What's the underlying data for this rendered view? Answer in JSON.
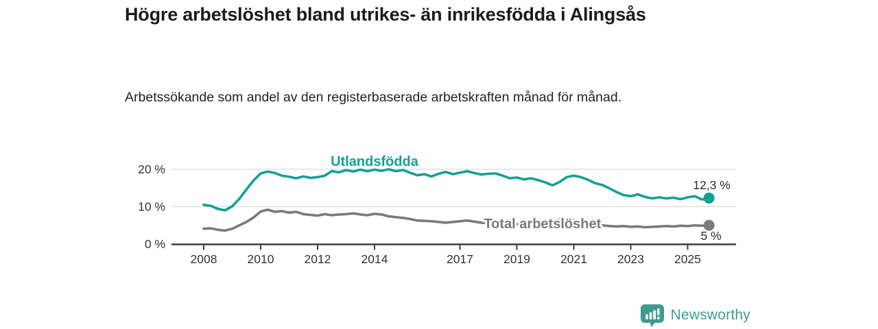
{
  "header": {
    "title": "Högre arbetslöshet bland utrikes- än inrikesfödda i Alingsås",
    "subtitle": "Arbetssökande som andel av den registerbaserade arbetskraften månad för månad."
  },
  "branding": {
    "name": "Newsworthy",
    "logo_icon": "bar-chart-speech-bubble-icon",
    "color": "#3f9b90"
  },
  "chart_data": {
    "type": "line",
    "title": "Högre arbetslöshet bland utrikes- än inrikesfödda i Alingsås",
    "subtitle": "Arbetssökande som andel av den registerbaserade arbetskraften månad för månad.",
    "xlabel": "",
    "ylabel": "",
    "grid": "horizontal",
    "legend_position": "inline-labels",
    "xlim": [
      2006.9,
      2026.7
    ],
    "ylim": [
      0,
      22
    ],
    "x_ticks": [
      2008,
      2010,
      2012,
      2014,
      2017,
      2019,
      2021,
      2023,
      2025
    ],
    "y_ticks": [
      {
        "value": 0,
        "label": "0 %"
      },
      {
        "value": 10,
        "label": "10 %"
      },
      {
        "value": 20,
        "label": "20 %"
      }
    ],
    "colors": {
      "axis": "#3c3c3c",
      "gridline": "#dadada",
      "tick_text": "#333333",
      "value_text": "#2b2b2b"
    },
    "series": [
      {
        "name": "Utlandsfödda",
        "color": "#13a096",
        "end_label": "12,3 %",
        "end_dot": true,
        "label_position": {
          "year": 2014.0,
          "value": 20.9
        },
        "end_label_offset": {
          "dx": 4,
          "dy": -13
        },
        "points": [
          [
            2008.0,
            10.5
          ],
          [
            2008.25,
            10.2
          ],
          [
            2008.5,
            9.4
          ],
          [
            2008.75,
            9.0
          ],
          [
            2009.0,
            10.1
          ],
          [
            2009.25,
            12.1
          ],
          [
            2009.5,
            14.6
          ],
          [
            2009.75,
            17.0
          ],
          [
            2010.0,
            18.9
          ],
          [
            2010.25,
            19.4
          ],
          [
            2010.5,
            19.0
          ],
          [
            2010.75,
            18.3
          ],
          [
            2011.0,
            18.0
          ],
          [
            2011.25,
            17.6
          ],
          [
            2011.5,
            18.1
          ],
          [
            2011.75,
            17.7
          ],
          [
            2012.0,
            17.9
          ],
          [
            2012.25,
            18.3
          ],
          [
            2012.5,
            19.5
          ],
          [
            2012.75,
            19.2
          ],
          [
            2013.0,
            19.8
          ],
          [
            2013.25,
            19.4
          ],
          [
            2013.5,
            19.9
          ],
          [
            2013.75,
            19.5
          ],
          [
            2014.0,
            19.9
          ],
          [
            2014.25,
            19.6
          ],
          [
            2014.5,
            20.0
          ],
          [
            2014.75,
            19.5
          ],
          [
            2015.0,
            19.8
          ],
          [
            2015.25,
            19.1
          ],
          [
            2015.5,
            18.4
          ],
          [
            2015.75,
            18.7
          ],
          [
            2016.0,
            18.1
          ],
          [
            2016.25,
            18.8
          ],
          [
            2016.5,
            19.3
          ],
          [
            2016.75,
            18.7
          ],
          [
            2017.0,
            19.1
          ],
          [
            2017.25,
            19.5
          ],
          [
            2017.5,
            19.0
          ],
          [
            2017.75,
            18.6
          ],
          [
            2018.0,
            18.8
          ],
          [
            2018.25,
            18.9
          ],
          [
            2018.5,
            18.3
          ],
          [
            2018.75,
            17.6
          ],
          [
            2019.0,
            17.8
          ],
          [
            2019.25,
            17.3
          ],
          [
            2019.5,
            17.6
          ],
          [
            2019.75,
            17.1
          ],
          [
            2020.0,
            16.5
          ],
          [
            2020.25,
            15.7
          ],
          [
            2020.5,
            16.6
          ],
          [
            2020.75,
            17.9
          ],
          [
            2021.0,
            18.3
          ],
          [
            2021.25,
            17.9
          ],
          [
            2021.5,
            17.2
          ],
          [
            2021.75,
            16.3
          ],
          [
            2022.0,
            15.8
          ],
          [
            2022.25,
            14.9
          ],
          [
            2022.5,
            13.9
          ],
          [
            2022.75,
            13.1
          ],
          [
            2023.0,
            12.8
          ],
          [
            2023.25,
            13.3
          ],
          [
            2023.5,
            12.6
          ],
          [
            2023.75,
            12.2
          ],
          [
            2024.0,
            12.5
          ],
          [
            2024.25,
            12.2
          ],
          [
            2024.5,
            12.4
          ],
          [
            2024.75,
            12.0
          ],
          [
            2025.0,
            12.5
          ],
          [
            2025.25,
            12.8
          ],
          [
            2025.5,
            11.9
          ],
          [
            2025.75,
            12.3
          ]
        ]
      },
      {
        "name": "Total arbetslöshet",
        "color": "#7a7a7a",
        "end_label": "5 %",
        "end_dot": true,
        "label_position": {
          "year": 2019.9,
          "value": 4.2
        },
        "end_label_offset": {
          "dx": 3,
          "dy": 21
        },
        "points": [
          [
            2008.0,
            4.1
          ],
          [
            2008.25,
            4.2
          ],
          [
            2008.5,
            3.8
          ],
          [
            2008.75,
            3.6
          ],
          [
            2009.0,
            4.1
          ],
          [
            2009.25,
            5.0
          ],
          [
            2009.5,
            5.9
          ],
          [
            2009.75,
            7.1
          ],
          [
            2010.0,
            8.7
          ],
          [
            2010.25,
            9.2
          ],
          [
            2010.5,
            8.6
          ],
          [
            2010.75,
            8.8
          ],
          [
            2011.0,
            8.4
          ],
          [
            2011.25,
            8.6
          ],
          [
            2011.5,
            8.0
          ],
          [
            2011.75,
            7.8
          ],
          [
            2012.0,
            7.6
          ],
          [
            2012.25,
            8.0
          ],
          [
            2012.5,
            7.7
          ],
          [
            2012.75,
            7.9
          ],
          [
            2013.0,
            8.0
          ],
          [
            2013.25,
            8.2
          ],
          [
            2013.5,
            7.9
          ],
          [
            2013.75,
            7.7
          ],
          [
            2014.0,
            8.1
          ],
          [
            2014.25,
            7.9
          ],
          [
            2014.5,
            7.4
          ],
          [
            2014.75,
            7.2
          ],
          [
            2015.0,
            7.0
          ],
          [
            2015.25,
            6.7
          ],
          [
            2015.5,
            6.3
          ],
          [
            2015.75,
            6.2
          ],
          [
            2016.0,
            6.1
          ],
          [
            2016.25,
            5.9
          ],
          [
            2016.5,
            5.7
          ],
          [
            2016.75,
            5.9
          ],
          [
            2017.0,
            6.1
          ],
          [
            2017.25,
            6.3
          ],
          [
            2017.5,
            6.0
          ],
          [
            2017.75,
            5.7
          ],
          [
            2018.0,
            5.6
          ],
          [
            2018.25,
            5.5
          ],
          [
            2018.5,
            5.3
          ],
          [
            2018.75,
            5.2
          ],
          [
            2019.0,
            5.3
          ],
          [
            2019.25,
            5.2
          ],
          [
            2019.5,
            5.4
          ],
          [
            2019.75,
            5.3
          ],
          [
            2020.0,
            5.5
          ],
          [
            2020.25,
            6.1
          ],
          [
            2020.5,
            6.6
          ],
          [
            2020.75,
            6.5
          ],
          [
            2021.0,
            6.4
          ],
          [
            2021.25,
            6.1
          ],
          [
            2021.5,
            5.7
          ],
          [
            2021.75,
            5.3
          ],
          [
            2022.0,
            5.0
          ],
          [
            2022.25,
            4.8
          ],
          [
            2022.5,
            4.7
          ],
          [
            2022.75,
            4.8
          ],
          [
            2023.0,
            4.6
          ],
          [
            2023.25,
            4.7
          ],
          [
            2023.5,
            4.5
          ],
          [
            2023.75,
            4.6
          ],
          [
            2024.0,
            4.7
          ],
          [
            2024.25,
            4.8
          ],
          [
            2024.5,
            4.7
          ],
          [
            2024.75,
            4.9
          ],
          [
            2025.0,
            4.8
          ],
          [
            2025.25,
            5.0
          ],
          [
            2025.5,
            4.9
          ],
          [
            2025.75,
            5.0
          ]
        ]
      }
    ]
  }
}
